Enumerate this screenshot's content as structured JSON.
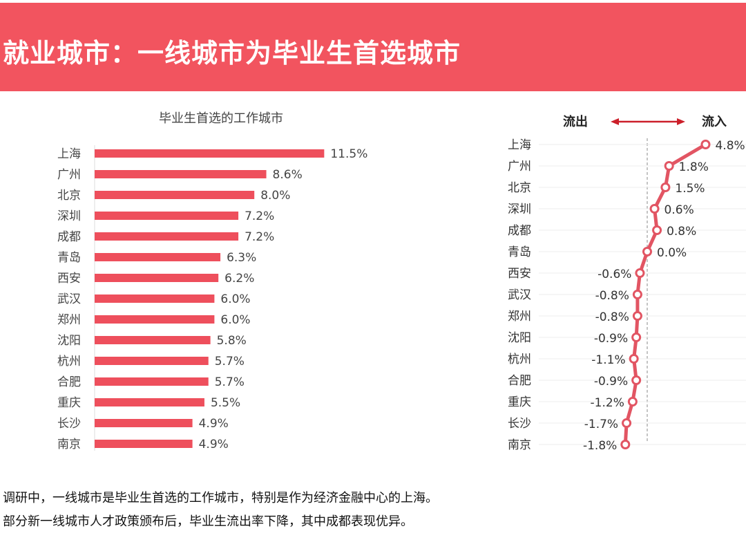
{
  "header": {
    "title": "就业城市：一线城市为毕业生首选城市"
  },
  "colors": {
    "header": "#f2545f",
    "bar": "#ee4f5c",
    "line": "#e25563"
  },
  "chart_data": [
    {
      "type": "bar",
      "orientation": "horizontal",
      "title": "毕业生首选的工作城市",
      "categories": [
        "上海",
        "广州",
        "北京",
        "深圳",
        "成都",
        "青岛",
        "西安",
        "武汉",
        "郑州",
        "沈阳",
        "杭州",
        "合肥",
        "重庆",
        "长沙",
        "南京"
      ],
      "values": [
        11.5,
        8.6,
        8.0,
        7.2,
        7.2,
        6.3,
        6.2,
        6.0,
        6.0,
        5.8,
        5.7,
        5.7,
        5.5,
        4.9,
        4.9
      ],
      "labels": [
        "11.5%",
        "8.6%",
        "8.0%",
        "7.2%",
        "7.2%",
        "6.3%",
        "6.2%",
        "6.0%",
        "6.0%",
        "5.8%",
        "5.7%",
        "5.7%",
        "5.5%",
        "4.9%",
        "4.9%"
      ],
      "unit": "%"
    },
    {
      "type": "line",
      "orientation": "vertical-categories",
      "legend_left": "流出",
      "legend_right": "流入",
      "categories": [
        "上海",
        "广州",
        "北京",
        "深圳",
        "成都",
        "青岛",
        "西安",
        "武汉",
        "郑州",
        "沈阳",
        "杭州",
        "合肥",
        "重庆",
        "长沙",
        "南京"
      ],
      "values": [
        4.8,
        1.8,
        1.5,
        0.6,
        0.8,
        0.0,
        -0.6,
        -0.8,
        -0.8,
        -0.9,
        -1.1,
        -0.9,
        -1.2,
        -1.7,
        -1.8
      ],
      "labels": [
        "4.8%",
        "1.8%",
        "1.5%",
        "0.6%",
        "0.8%",
        "0.0%",
        "-0.6%",
        "-0.8%",
        "-0.8%",
        "-0.9%",
        "-1.1%",
        "-0.9%",
        "-1.2%",
        "-1.7%",
        "-1.8%"
      ],
      "unit": "%"
    }
  ],
  "notes": [
    "调研中，一线城市是毕业生首选的工作城市，特别是作为经济金融中心的上海。",
    "部分新一线城市人才政策颁布后，毕业生流出率下降，其中成都表现优异。"
  ]
}
